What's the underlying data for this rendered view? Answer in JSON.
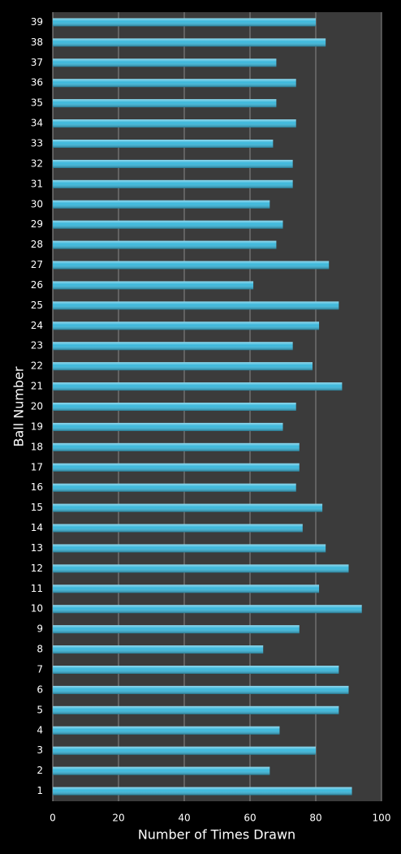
{
  "chart_data": {
    "type": "barh",
    "xlabel": "Number of Times Drawn",
    "ylabel": "Ball Number",
    "categories": [
      "1",
      "2",
      "3",
      "4",
      "5",
      "6",
      "7",
      "8",
      "9",
      "10",
      "11",
      "12",
      "13",
      "14",
      "15",
      "16",
      "17",
      "18",
      "19",
      "20",
      "21",
      "22",
      "23",
      "24",
      "25",
      "26",
      "27",
      "28",
      "29",
      "30",
      "31",
      "32",
      "33",
      "34",
      "35",
      "36",
      "37",
      "38",
      "39"
    ],
    "values": [
      91,
      66,
      80,
      69,
      87,
      90,
      87,
      64,
      75,
      94,
      81,
      90,
      83,
      76,
      82,
      74,
      75,
      75,
      70,
      74,
      88,
      79,
      73,
      81,
      87,
      61,
      84,
      68,
      70,
      66,
      73,
      73,
      67,
      74,
      68,
      74,
      68,
      83,
      80
    ],
    "color": "#3cb8dc",
    "xlim": [
      0,
      100
    ],
    "xticks": [
      0,
      20,
      40,
      60,
      80,
      100
    ],
    "grid": true
  }
}
